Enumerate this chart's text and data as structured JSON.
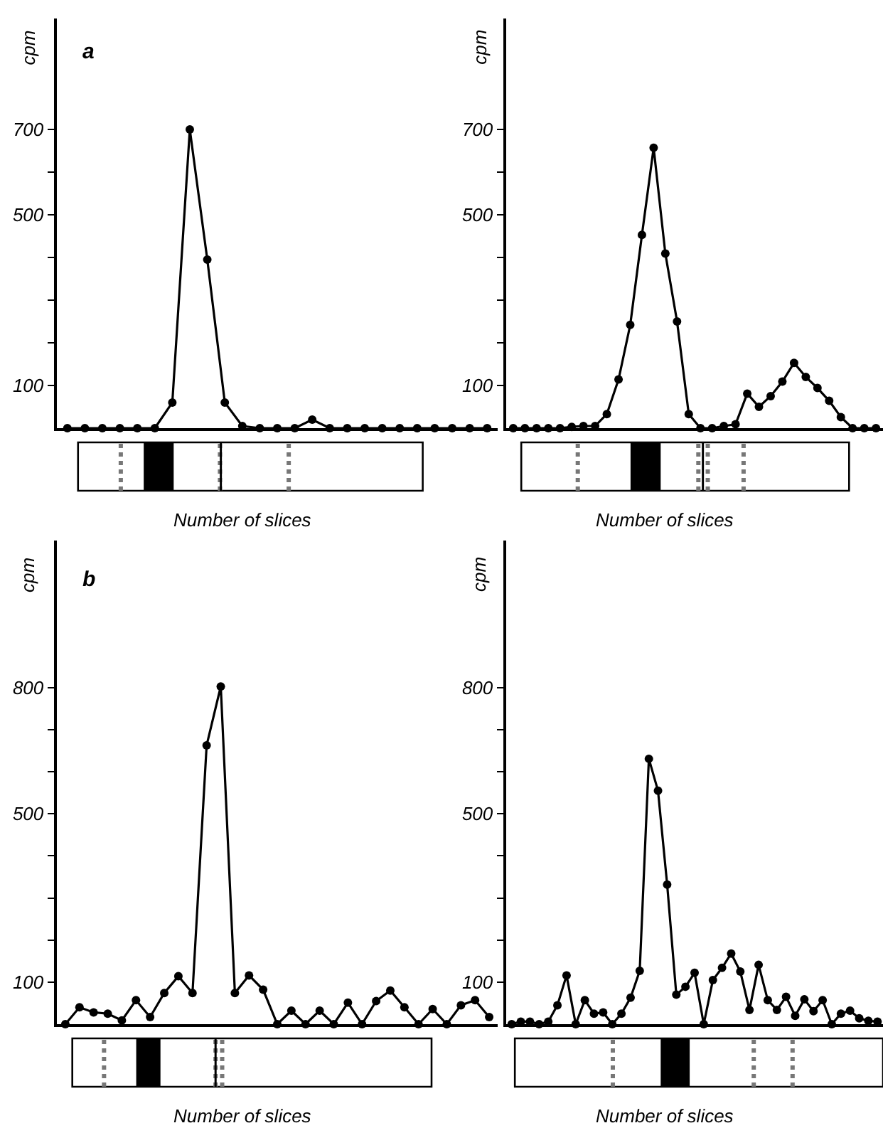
{
  "chart_data": [
    {
      "type": "line",
      "xlabel": "Number of slices",
      "ylabel": "cpm",
      "annotations": [
        "a"
      ],
      "marker": "circle",
      "color": "#000000",
      "tick_labels": "y",
      "ylim": [
        0,
        960
      ],
      "yticks": [
        100,
        {
          "value": 200,
          "label": null
        },
        {
          "value": 300,
          "label": null
        },
        {
          "value": 400,
          "label": null
        },
        500,
        {
          "value": 600,
          "label": null
        },
        700
      ],
      "categories": [
        null,
        null,
        null,
        null,
        null,
        null,
        null,
        null,
        null,
        null,
        null,
        null,
        null,
        null,
        null,
        null,
        null,
        null,
        null,
        null,
        null,
        null,
        null,
        null,
        null
      ],
      "values": [
        0,
        0,
        0,
        0,
        0,
        0,
        60,
        700,
        395,
        60,
        5,
        0,
        0,
        0,
        20,
        0,
        0,
        0,
        0,
        0,
        0,
        0,
        0,
        0,
        0
      ]
    },
    {
      "type": "line",
      "xlabel": "Number of slices",
      "ylabel": "cpm",
      "marker": "circle",
      "color": "#000000",
      "tick_labels": "y",
      "ylim": [
        0,
        960
      ],
      "yticks": [
        100,
        {
          "value": 200,
          "label": null
        },
        {
          "value": 300,
          "label": null
        },
        {
          "value": 400,
          "label": null
        },
        500,
        {
          "value": 600,
          "label": null
        },
        700
      ],
      "categories": [
        null,
        null,
        null,
        null,
        null,
        null,
        null,
        null,
        null,
        null,
        null,
        null,
        null,
        null,
        null,
        null,
        null,
        null,
        null,
        null,
        null,
        null,
        null,
        null,
        null,
        null,
        null,
        null,
        null,
        null,
        null,
        null
      ],
      "values": [
        0,
        0,
        0,
        0,
        0,
        3,
        5,
        5,
        33,
        114,
        242,
        453,
        657,
        409,
        250,
        33,
        0,
        0,
        5,
        9,
        81,
        50,
        75,
        109,
        153,
        120,
        94,
        64,
        26,
        0,
        0,
        0
      ]
    },
    {
      "type": "line",
      "xlabel": "Number of slices",
      "ylabel": "cpm",
      "annotations": [
        "b"
      ],
      "marker": "circle",
      "color": "#000000",
      "tick_labels": "y",
      "ylim": [
        0,
        1150
      ],
      "yticks": [
        100,
        {
          "value": 200,
          "label": null
        },
        {
          "value": 300,
          "label": null
        },
        {
          "value": 400,
          "label": null
        },
        500,
        {
          "value": 600,
          "label": null
        },
        {
          "value": 700,
          "label": null
        },
        800
      ],
      "categories": [
        null,
        null,
        null,
        null,
        null,
        null,
        null,
        null,
        null,
        null,
        null,
        null,
        null,
        null,
        null,
        null,
        null,
        null,
        null,
        null,
        null,
        null,
        null,
        null,
        null,
        null,
        null,
        null,
        null,
        null,
        null
      ],
      "values": [
        0,
        40,
        28,
        25,
        9,
        57,
        17,
        74,
        114,
        74,
        663,
        803,
        74,
        116,
        82,
        0,
        32,
        0,
        32,
        0,
        51,
        0,
        55,
        80,
        40,
        0,
        36,
        0,
        45,
        57,
        17
      ]
    },
    {
      "type": "line",
      "xlabel": "Number of slices",
      "ylabel": "cpm",
      "marker": "circle",
      "color": "#000000",
      "tick_labels": "y",
      "ylim": [
        0,
        1150
      ],
      "yticks": [
        100,
        {
          "value": 200,
          "label": null
        },
        {
          "value": 300,
          "label": null
        },
        {
          "value": 400,
          "label": null
        },
        500,
        {
          "value": 600,
          "label": null
        },
        {
          "value": 700,
          "label": null
        },
        800
      ],
      "categories": [
        null,
        null,
        null,
        null,
        null,
        null,
        null,
        null,
        null,
        null,
        null,
        null,
        null,
        null,
        null,
        null,
        null,
        null,
        null,
        null,
        null,
        null,
        null,
        null,
        null,
        null,
        null,
        null,
        null,
        null,
        null,
        null,
        null,
        null,
        null,
        null,
        null,
        null,
        null,
        null,
        null
      ],
      "values": [
        0,
        6,
        6,
        0,
        6,
        45,
        116,
        0,
        57,
        25,
        28,
        0,
        25,
        63,
        127,
        631,
        555,
        332,
        70,
        89,
        122,
        0,
        105,
        134,
        168,
        125,
        34,
        141,
        57,
        34,
        65,
        20,
        59,
        31,
        57,
        0,
        25,
        32,
        14,
        8,
        6
      ]
    }
  ]
}
